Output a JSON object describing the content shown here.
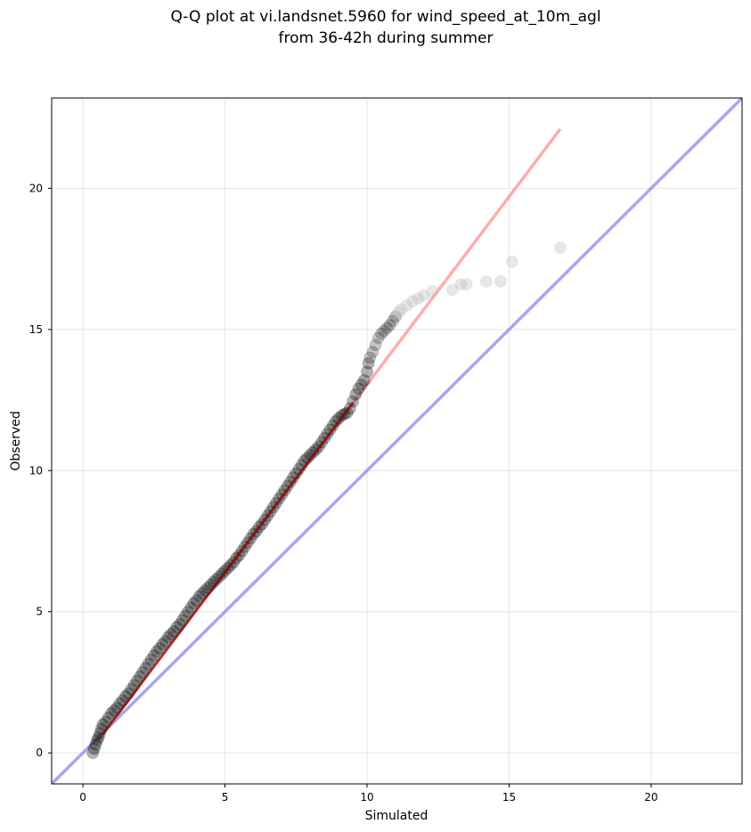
{
  "chart_data": {
    "type": "scatter",
    "title_line1": "Q-Q plot at vi.landsnet.5960 for wind_speed_at_10m_agl",
    "title_line2": "from 36-42h during summer",
    "xlabel": "Simulated",
    "ylabel": "Observed",
    "xlim": [
      -1.1,
      23.2
    ],
    "ylim": [
      -1.1,
      23.2
    ],
    "xticks": [
      0,
      5,
      10,
      15,
      20
    ],
    "yticks": [
      0,
      5,
      10,
      15,
      20
    ],
    "xtick_labels": [
      "0",
      "5",
      "10",
      "15",
      "20"
    ],
    "ytick_labels": [
      "0",
      "5",
      "10",
      "15",
      "20"
    ],
    "grid": true,
    "colors": {
      "points": "#000000",
      "upper_points": "#bbbbbb",
      "fit_line_lower": "#8b0000",
      "fit_line_upper": "#ff8080",
      "identity_line": "#8080ee"
    },
    "identity_line": {
      "x": [
        -1.1,
        23.2
      ],
      "y": [
        -1.1,
        23.2
      ]
    },
    "fit_line": {
      "x": [
        0.5,
        16.8
      ],
      "y": [
        0.4,
        22.1
      ]
    },
    "points": [
      [
        0.35,
        0.0
      ],
      [
        0.4,
        0.15
      ],
      [
        0.45,
        0.3
      ],
      [
        0.5,
        0.45
      ],
      [
        0.55,
        0.55
      ],
      [
        0.6,
        0.7
      ],
      [
        0.65,
        0.85
      ],
      [
        0.7,
        1.0
      ],
      [
        0.8,
        1.1
      ],
      [
        0.9,
        1.25
      ],
      [
        1.0,
        1.4
      ],
      [
        1.1,
        1.5
      ],
      [
        1.2,
        1.6
      ],
      [
        1.3,
        1.75
      ],
      [
        1.4,
        1.85
      ],
      [
        1.5,
        2.0
      ],
      [
        1.6,
        2.1
      ],
      [
        1.7,
        2.25
      ],
      [
        1.8,
        2.4
      ],
      [
        1.9,
        2.55
      ],
      [
        2.0,
        2.7
      ],
      [
        2.1,
        2.85
      ],
      [
        2.2,
        3.0
      ],
      [
        2.3,
        3.15
      ],
      [
        2.4,
        3.3
      ],
      [
        2.5,
        3.45
      ],
      [
        2.6,
        3.6
      ],
      [
        2.7,
        3.7
      ],
      [
        2.8,
        3.85
      ],
      [
        2.9,
        3.95
      ],
      [
        3.0,
        4.1
      ],
      [
        3.1,
        4.2
      ],
      [
        3.2,
        4.3
      ],
      [
        3.3,
        4.45
      ],
      [
        3.4,
        4.55
      ],
      [
        3.5,
        4.7
      ],
      [
        3.6,
        4.85
      ],
      [
        3.7,
        5.0
      ],
      [
        3.8,
        5.15
      ],
      [
        3.9,
        5.3
      ],
      [
        4.0,
        5.4
      ],
      [
        4.1,
        5.55
      ],
      [
        4.2,
        5.65
      ],
      [
        4.3,
        5.75
      ],
      [
        4.4,
        5.85
      ],
      [
        4.5,
        5.95
      ],
      [
        4.6,
        6.05
      ],
      [
        4.7,
        6.15
      ],
      [
        4.8,
        6.25
      ],
      [
        4.9,
        6.35
      ],
      [
        5.0,
        6.45
      ],
      [
        5.1,
        6.55
      ],
      [
        5.2,
        6.65
      ],
      [
        5.3,
        6.75
      ],
      [
        5.4,
        6.9
      ],
      [
        5.5,
        7.0
      ],
      [
        5.6,
        7.15
      ],
      [
        5.7,
        7.3
      ],
      [
        5.8,
        7.45
      ],
      [
        5.9,
        7.6
      ],
      [
        6.0,
        7.75
      ],
      [
        6.1,
        7.85
      ],
      [
        6.2,
        8.0
      ],
      [
        6.3,
        8.1
      ],
      [
        6.4,
        8.25
      ],
      [
        6.5,
        8.4
      ],
      [
        6.6,
        8.55
      ],
      [
        6.7,
        8.7
      ],
      [
        6.8,
        8.85
      ],
      [
        6.9,
        9.0
      ],
      [
        7.0,
        9.15
      ],
      [
        7.1,
        9.3
      ],
      [
        7.2,
        9.45
      ],
      [
        7.3,
        9.6
      ],
      [
        7.4,
        9.75
      ],
      [
        7.5,
        9.9
      ],
      [
        7.6,
        10.05
      ],
      [
        7.7,
        10.2
      ],
      [
        7.8,
        10.35
      ],
      [
        7.9,
        10.45
      ],
      [
        8.0,
        10.55
      ],
      [
        8.1,
        10.65
      ],
      [
        8.2,
        10.75
      ],
      [
        8.3,
        10.85
      ],
      [
        8.4,
        11.0
      ],
      [
        8.5,
        11.15
      ],
      [
        8.6,
        11.3
      ],
      [
        8.7,
        11.45
      ],
      [
        8.8,
        11.6
      ],
      [
        8.9,
        11.75
      ],
      [
        9.0,
        11.85
      ],
      [
        9.1,
        11.95
      ],
      [
        9.2,
        12.0
      ],
      [
        9.3,
        12.05
      ],
      [
        9.4,
        12.2
      ],
      [
        9.5,
        12.45
      ],
      [
        9.6,
        12.7
      ],
      [
        9.7,
        12.9
      ],
      [
        9.8,
        13.05
      ],
      [
        9.9,
        13.2
      ],
      [
        10.0,
        13.5
      ],
      [
        10.05,
        13.8
      ],
      [
        10.1,
        14.0
      ],
      [
        10.2,
        14.2
      ],
      [
        10.3,
        14.45
      ],
      [
        10.4,
        14.7
      ],
      [
        10.5,
        14.85
      ],
      [
        10.6,
        14.95
      ],
      [
        10.7,
        15.05
      ],
      [
        10.8,
        15.15
      ],
      [
        10.9,
        15.3
      ],
      [
        11.0,
        15.45
      ],
      [
        11.1,
        15.6
      ],
      [
        11.2,
        15.7
      ],
      [
        11.4,
        15.85
      ],
      [
        11.6,
        16.0
      ],
      [
        11.8,
        16.1
      ],
      [
        12.0,
        16.2
      ],
      [
        12.3,
        16.35
      ],
      [
        13.0,
        16.4
      ],
      [
        13.3,
        16.6
      ],
      [
        13.5,
        16.6
      ],
      [
        14.2,
        16.7
      ],
      [
        14.7,
        16.7
      ],
      [
        15.1,
        17.4
      ],
      [
        16.8,
        17.9
      ]
    ]
  }
}
